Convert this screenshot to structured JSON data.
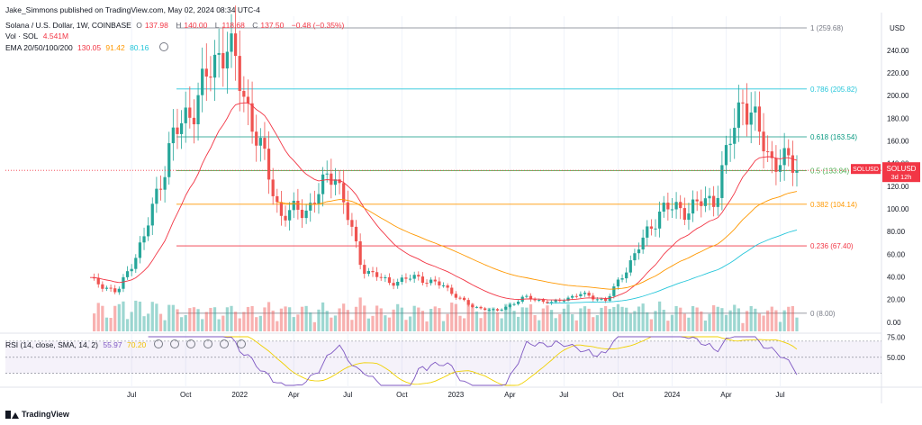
{
  "publisher": "Jake_Simmons published on TradingView.com, May 02, 2024 08:34 UTC-4",
  "header": {
    "symbol": "Solana / U.S. Dollar, 1W, COINBASE",
    "o_label": "O",
    "o_value": "137.98",
    "h_label": "H",
    "h_value": "140.00",
    "l_label": "L",
    "l_value": "118.68",
    "c_label": "C",
    "c_value": "137.50",
    "change": "−0.48 (−0.35%)",
    "vol_label": "Vol · SOL",
    "vol_value": "4.541M",
    "ema_label": "EMA 20/50/100/200",
    "ema20": "130.05",
    "ema50": "91.42",
    "ema100": "80.16",
    "ema200": ""
  },
  "rsi_header": {
    "label": "RSI (14, close, SMA, 14, 2)",
    "rsi": "55.97",
    "sma": "70.20"
  },
  "price_tag": {
    "symbol": "SOLUSD",
    "price": "137.50",
    "countdown": "3d 12h"
  },
  "currency": "USD",
  "brand": "TradingView",
  "colors": {
    "up": "#26a69a",
    "down": "#ef5350",
    "ema20": "#f23645",
    "ema50": "#ff9800",
    "ema100": "#26c6da",
    "rsi": "#7e57c2",
    "rsi_sma": "#f0d000"
  },
  "chart_data": [
    {
      "type": "candlestick",
      "ylim": [
        -8,
        270
      ],
      "y_ticks": [
        "240.00",
        "220.00",
        "200.00",
        "180.00",
        "160.00",
        "140.00",
        "120.00",
        "100.00",
        "80.00",
        "60.00",
        "40.00",
        "20.00",
        "0.00"
      ],
      "x_ticks": [
        "Jul",
        "Oct",
        "2022",
        "Apr",
        "Jul",
        "Oct",
        "2023",
        "Apr",
        "Jul",
        "Oct",
        "2024",
        "Apr",
        "Jul"
      ],
      "fib_levels": [
        {
          "label": "1 (259.68)",
          "value": 259.68,
          "color": "#787b86"
        },
        {
          "label": "0.786 (205.82)",
          "value": 205.82,
          "color": "#26c6da"
        },
        {
          "label": "0.618 (163.54)",
          "value": 163.54,
          "color": "#089981"
        },
        {
          "label": "0.5 (133.84)",
          "value": 133.84,
          "color": "#4caf50"
        },
        {
          "label": "0.382 (104.14)",
          "value": 104.14,
          "color": "#ff9800"
        },
        {
          "label": "0.236 (67.40)",
          "value": 67.4,
          "color": "#f23645"
        },
        {
          "label": "0 (8.00)",
          "value": 8.0,
          "color": "#787b86"
        }
      ],
      "key_closes": [
        {
          "label": "2021-05",
          "value": 38
        },
        {
          "label": "2021-07",
          "value": 26
        },
        {
          "label": "2021-08",
          "value": 75
        },
        {
          "label": "2021-09",
          "value": 160
        },
        {
          "label": "2021-10",
          "value": 200
        },
        {
          "label": "2021-11",
          "value": 250
        },
        {
          "label": "2021-12",
          "value": 175
        },
        {
          "label": "2022-01",
          "value": 95
        },
        {
          "label": "2022-03",
          "value": 100
        },
        {
          "label": "2022-04",
          "value": 135
        },
        {
          "label": "2022-05",
          "value": 48
        },
        {
          "label": "2022-06",
          "value": 35
        },
        {
          "label": "2022-08",
          "value": 40
        },
        {
          "label": "2022-10",
          "value": 32
        },
        {
          "label": "2022-11",
          "value": 14
        },
        {
          "label": "2022-12",
          "value": 10
        },
        {
          "label": "2023-02",
          "value": 22
        },
        {
          "label": "2023-06",
          "value": 17
        },
        {
          "label": "2023-07",
          "value": 25
        },
        {
          "label": "2023-09",
          "value": 19
        },
        {
          "label": "2023-11",
          "value": 58
        },
        {
          "label": "2023-12",
          "value": 100
        },
        {
          "label": "2024-01",
          "value": 100
        },
        {
          "label": "2024-02",
          "value": 110
        },
        {
          "label": "2024-03",
          "value": 200
        },
        {
          "label": "2024-04",
          "value": 145
        },
        {
          "label": "2024-05",
          "value": 137.5
        }
      ]
    },
    {
      "type": "line",
      "title": "RSI (14, close, SMA, 14, 2)",
      "y_ticks": [
        "75.00",
        "50.00"
      ],
      "bands": [
        70,
        50,
        30
      ]
    }
  ]
}
